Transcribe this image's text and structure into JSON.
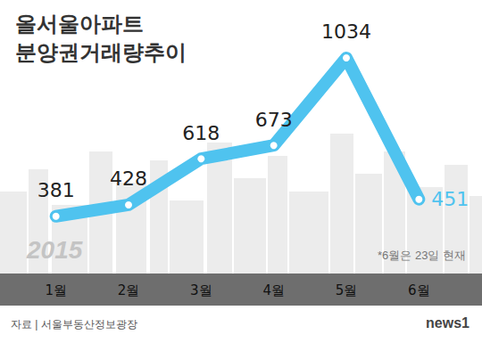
{
  "chart_data": {
    "type": "line",
    "title": "올서울아파트\n분양권거래량추이",
    "categories": [
      "1월",
      "2월",
      "3월",
      "4월",
      "5월",
      "6월"
    ],
    "values": [
      381,
      428,
      618,
      673,
      1034,
      451
    ],
    "color": "#4fc3ef",
    "ylim": [
      200,
      1100
    ],
    "yticks": [
      200,
      500,
      800,
      1100
    ],
    "grid": false,
    "data_labels": true,
    "tick_labels": "x",
    "marker": "circle",
    "annotations": [
      "2015",
      "*6월은 23일 현재",
      "자료 | 서울부동산정보광장",
      "news1"
    ]
  }
}
